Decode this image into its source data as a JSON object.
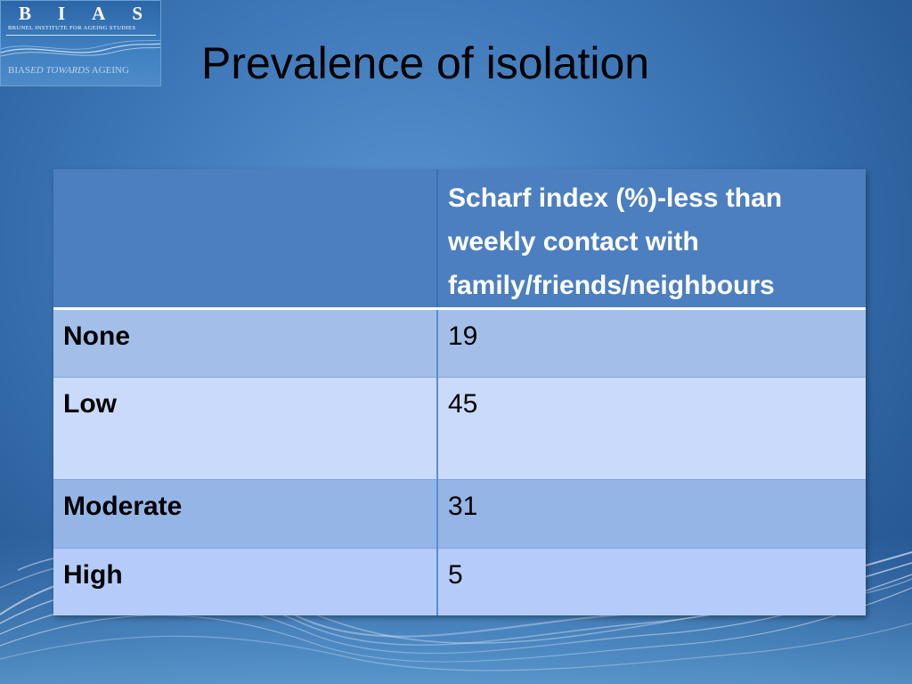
{
  "logo": {
    "letters": [
      "B",
      "I",
      "A",
      "S"
    ],
    "subtitle": "BRUNEL INSTITUTE FOR AGEING STUDIES",
    "tagline_prefix": "BIAS",
    "tagline_italic": "ED TOWARDS",
    "tagline_suffix": " AGEING"
  },
  "slide": {
    "title": "Prevalence of isolation"
  },
  "table": {
    "header": {
      "col1": "",
      "col2": "Scharf index (%)-less than weekly contact with family/friends/neighbours"
    },
    "rows": [
      {
        "label": "None",
        "value": "19"
      },
      {
        "label": "Low",
        "value": "45"
      },
      {
        "label": "Moderate",
        "value": "31"
      },
      {
        "label": "High",
        "value": "5"
      }
    ]
  },
  "colors": {
    "background": "#3e78b9",
    "header": "#4c7fbf",
    "row_none": "#a3bfe9",
    "row_low": "#c9dafb",
    "row_moderate": "#95b5e6",
    "row_high": "#b5ccfa"
  }
}
